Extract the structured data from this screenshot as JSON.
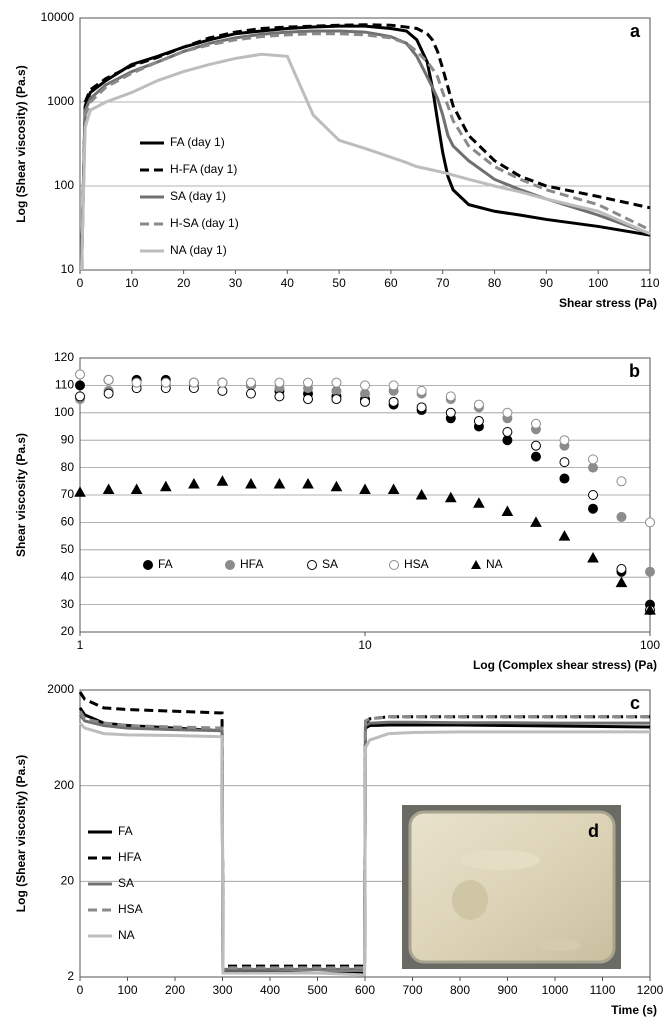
{
  "chart_data": [
    {
      "type": "line",
      "panel_label": "a",
      "ylabel": "Log (Shear viscosity) (Pa.s)",
      "xlabel": "Shear stress (Pa)",
      "yscale": "log",
      "ylim": [
        10,
        10000
      ],
      "yticks": [
        10,
        100,
        1000,
        10000
      ],
      "xlim": [
        0,
        110
      ],
      "xticks": [
        0,
        10,
        20,
        30,
        40,
        50,
        60,
        70,
        80,
        90,
        100,
        110
      ],
      "grid": true,
      "x": [
        0.3,
        1,
        2,
        5,
        10,
        15,
        20,
        25,
        30,
        35,
        40,
        45,
        50,
        55,
        60,
        63,
        65,
        67,
        68,
        69,
        70,
        71,
        72,
        75,
        80,
        85,
        90,
        100,
        110
      ],
      "series": [
        {
          "name": "FA (day 1)",
          "color": "#000000",
          "dashed": false,
          "values": [
            10,
            900,
            1300,
            1800,
            2800,
            3500,
            4500,
            5500,
            6500,
            7000,
            7500,
            7800,
            8000,
            8000,
            7500,
            7000,
            5500,
            3000,
            1500,
            600,
            250,
            130,
            90,
            60,
            50,
            45,
            40,
            33,
            26
          ]
        },
        {
          "name": "H-FA (day 1)",
          "color": "#000000",
          "dashed": true,
          "values": [
            10,
            1000,
            1400,
            1900,
            2700,
            3400,
            4500,
            5800,
            6800,
            7500,
            7800,
            8000,
            8200,
            8300,
            8200,
            7800,
            7500,
            6500,
            5500,
            4000,
            2500,
            1500,
            900,
            400,
            200,
            130,
            100,
            75,
            55
          ]
        },
        {
          "name": "SA (day 1)",
          "color": "#707070",
          "dashed": false,
          "values": [
            10,
            800,
            1100,
            1600,
            2300,
            3000,
            4000,
            5000,
            5800,
            6400,
            6800,
            7000,
            7000,
            6800,
            6000,
            5000,
            3500,
            2000,
            1500,
            1100,
            700,
            400,
            300,
            200,
            120,
            90,
            70,
            45,
            27
          ]
        },
        {
          "name": "H-SA (day 1)",
          "color": "#8a8a8a",
          "dashed": true,
          "values": [
            10,
            700,
            1000,
            1500,
            2200,
            3000,
            4000,
            4800,
            5500,
            6000,
            6300,
            6500,
            6500,
            6300,
            5800,
            5000,
            4000,
            3000,
            2500,
            2000,
            1300,
            900,
            600,
            300,
            170,
            120,
            90,
            60,
            30
          ]
        },
        {
          "name": "NA (day 1)",
          "color": "#bdbdbd",
          "dashed": false,
          "values": [
            10,
            500,
            800,
            1000,
            1300,
            1800,
            2300,
            2800,
            3300,
            3700,
            3500,
            700,
            350,
            280,
            220,
            190,
            170,
            160,
            155,
            150,
            145,
            140,
            135,
            120,
            100,
            85,
            70,
            50,
            27
          ]
        }
      ]
    },
    {
      "type": "scatter",
      "panel_label": "b",
      "ylabel": "Shear viscosity (Pa.s)",
      "xlabel": "Log (Complex shear stress) (Pa)",
      "xscale": "log",
      "xlim": [
        1,
        100
      ],
      "xticks": [
        1,
        10,
        100
      ],
      "ylim": [
        20,
        120
      ],
      "yticks": [
        20,
        30,
        40,
        50,
        60,
        70,
        80,
        90,
        100,
        110,
        120
      ],
      "grid": true,
      "x": [
        1,
        1.26,
        1.58,
        2,
        2.51,
        3.16,
        3.98,
        5.01,
        6.31,
        7.94,
        10,
        12.6,
        15.8,
        20,
        25.1,
        31.6,
        39.8,
        50.1,
        63.1,
        79.4,
        100
      ],
      "series": [
        {
          "name": "FA",
          "color": "#000000",
          "marker": "circle",
          "filled": true,
          "values": [
            110,
            112,
            112,
            112,
            111,
            111,
            110,
            108,
            107,
            106,
            105,
            103,
            101,
            98,
            95,
            90,
            84,
            76,
            65,
            42,
            30
          ]
        },
        {
          "name": "HFA",
          "color": "#8c8c8c",
          "marker": "circle",
          "filled": true,
          "values": [
            105,
            108,
            109,
            110,
            110,
            111,
            110,
            109,
            109,
            108,
            107,
            108,
            107,
            105,
            102,
            98,
            94,
            88,
            80,
            62,
            42
          ]
        },
        {
          "name": "SA",
          "color": "#000000",
          "marker": "circle",
          "filled": false,
          "values": [
            106,
            107,
            109,
            109,
            109,
            108,
            107,
            106,
            105,
            105,
            104,
            104,
            102,
            100,
            97,
            93,
            88,
            82,
            70,
            43,
            28
          ]
        },
        {
          "name": "HSA",
          "color": "#8c8c8c",
          "marker": "circle",
          "filled": false,
          "values": [
            114,
            112,
            111,
            111,
            111,
            111,
            111,
            111,
            111,
            111,
            110,
            110,
            108,
            106,
            103,
            100,
            96,
            90,
            83,
            75,
            60
          ]
        },
        {
          "name": "NA",
          "color": "#000000",
          "marker": "triangle",
          "filled": true,
          "values": [
            71,
            72,
            72,
            73,
            74,
            75,
            74,
            74,
            74,
            73,
            72,
            72,
            70,
            69,
            67,
            64,
            60,
            55,
            47,
            38,
            28
          ]
        }
      ]
    },
    {
      "type": "line",
      "panel_label": "c",
      "inset_label": "d",
      "ylabel": "Log (Shear viscosity) (Pa.s)",
      "xlabel": "Time (s)",
      "yscale": "log",
      "ylim": [
        2,
        2000
      ],
      "yticks": [
        2,
        20,
        200,
        2000
      ],
      "xlim": [
        0,
        1200
      ],
      "xticks": [
        0,
        100,
        200,
        300,
        400,
        500,
        600,
        700,
        800,
        900,
        1000,
        1100,
        1200
      ],
      "grid": true,
      "x": [
        0,
        10,
        50,
        100,
        200,
        299,
        301,
        400,
        500,
        599,
        601,
        610,
        650,
        700,
        800,
        900,
        1000,
        1100,
        1200
      ],
      "series": [
        {
          "name": "FA",
          "color": "#000000",
          "dashed": false,
          "values": [
            1300,
            1100,
            900,
            850,
            800,
            750,
            2.3,
            2.25,
            2.2,
            2.2,
            800,
            850,
            860,
            860,
            860,
            850,
            840,
            830,
            820
          ]
        },
        {
          "name": "HFA",
          "color": "#000000",
          "dashed": true,
          "values": [
            1900,
            1600,
            1300,
            1250,
            1200,
            1150,
            2.6,
            2.6,
            2.6,
            2.6,
            900,
            1000,
            1050,
            1050,
            1050,
            1050,
            1050,
            1050,
            1050
          ]
        },
        {
          "name": "SA",
          "color": "#707070",
          "dashed": false,
          "values": [
            1100,
            950,
            850,
            800,
            770,
            750,
            2.4,
            2.4,
            2.4,
            2.4,
            850,
            900,
            920,
            920,
            910,
            910,
            900,
            900,
            900
          ]
        },
        {
          "name": "HSA",
          "color": "#8a8a8a",
          "dashed": true,
          "values": [
            1200,
            1000,
            900,
            850,
            820,
            800,
            2.5,
            2.5,
            2.5,
            2.5,
            950,
            1000,
            1050,
            1050,
            1050,
            1050,
            1050,
            1050,
            1050
          ]
        },
        {
          "name": "NA",
          "color": "#bdbdbd",
          "dashed": false,
          "values": [
            900,
            800,
            700,
            680,
            670,
            650,
            2.2,
            2.2,
            2.2,
            2.1,
            500,
            600,
            700,
            720,
            730,
            730,
            730,
            730,
            730
          ]
        }
      ]
    }
  ]
}
